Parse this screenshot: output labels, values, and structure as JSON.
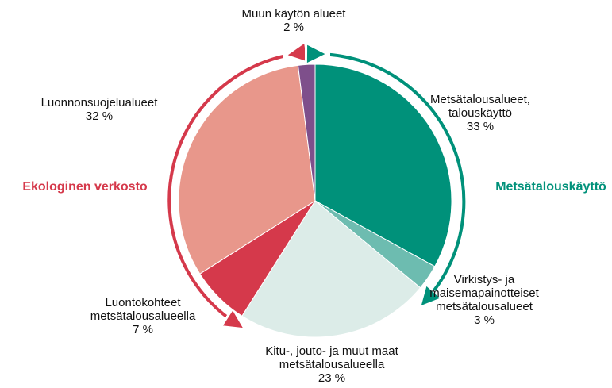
{
  "chart_data": {
    "type": "pie",
    "categories": [
      "Metsätalousalueet,\ntalouskäyttö",
      "Virkistys- ja\nmaisemapainotteiset\nmetsätalousalueet",
      "Kitu-, jouto- ja muut maat\nmetsätalousalueella",
      "Luontokohteet\nmetsätalousalueella",
      "Luonnonsuojelualueet",
      "Muun käytön alueet"
    ],
    "values": [
      33,
      3,
      23,
      7,
      32,
      2
    ],
    "value_labels": [
      "33 %",
      "3 %",
      "23 %",
      "7 %",
      "32 %",
      "2 %"
    ],
    "colors": [
      "#00917a",
      "#6dbcb0",
      "#dcece8",
      "#d5394b",
      "#e8978b",
      "#7e4f8b"
    ],
    "annotations": [
      {
        "text": "Ekologinen verkosto",
        "color": "#d5394b"
      },
      {
        "text": "Metsätalouskäyttö",
        "color": "#00917a"
      }
    ]
  }
}
